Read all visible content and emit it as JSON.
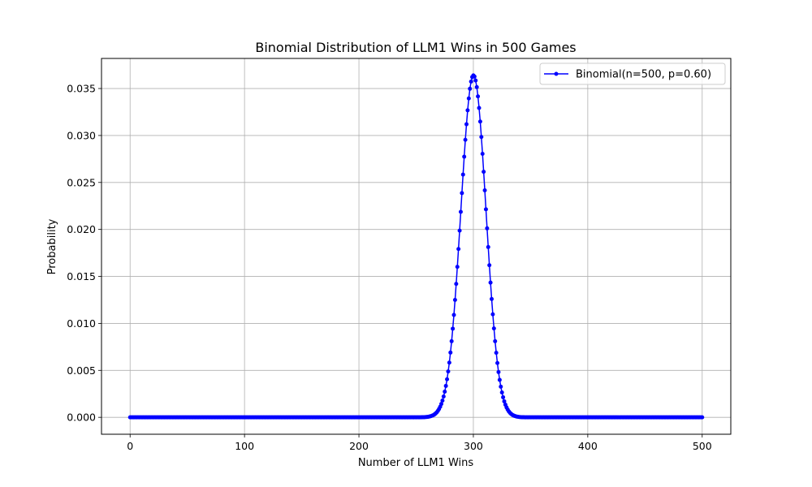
{
  "chart_data": {
    "type": "line",
    "title": "Binomial Distribution of LLM1 Wins in 500 Games",
    "xlabel": "Number of LLM1 Wins",
    "ylabel": "Probability",
    "xlim": [
      -25,
      525
    ],
    "ylim": [
      -0.0018,
      0.0382
    ],
    "x_ticks": [
      0,
      100,
      200,
      300,
      400,
      500
    ],
    "x_tick_labels": [
      "0",
      "100",
      "200",
      "300",
      "400",
      "500"
    ],
    "y_ticks": [
      0,
      0.005,
      0.01,
      0.015,
      0.02,
      0.025,
      0.03,
      0.035
    ],
    "y_tick_labels": [
      "0.000",
      "0.005",
      "0.010",
      "0.015",
      "0.020",
      "0.025",
      "0.030",
      "0.035"
    ],
    "grid": true,
    "legend_position": "top-right",
    "series": [
      {
        "name": "Binomial(n=500, p=0.60)",
        "color": "#0000ff",
        "marker": "circle",
        "distribution": {
          "n": 500,
          "p": 0.6
        },
        "x": [
          0,
          500
        ]
      }
    ]
  }
}
